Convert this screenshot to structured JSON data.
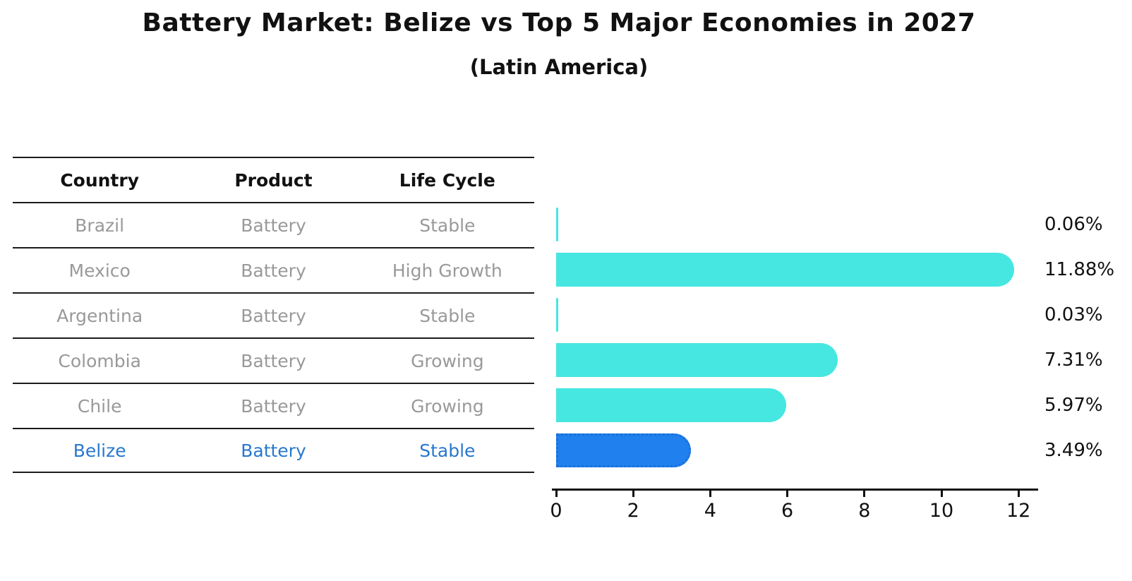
{
  "title": "Battery Market: Belize vs Top 5 Major Economies in 2027",
  "subtitle": "(Latin America)",
  "table": {
    "headers": [
      "Country",
      "Product",
      "Life Cycle"
    ],
    "rows": [
      {
        "country": "Brazil",
        "product": "Battery",
        "life_cycle": "Stable",
        "highlighted": false
      },
      {
        "country": "Mexico",
        "product": "Battery",
        "life_cycle": "High Growth",
        "highlighted": false
      },
      {
        "country": "Argentina",
        "product": "Battery",
        "life_cycle": "Stable",
        "highlighted": false
      },
      {
        "country": "Colombia",
        "product": "Battery",
        "life_cycle": "Growing",
        "highlighted": false
      },
      {
        "country": "Chile",
        "product": "Battery",
        "life_cycle": "Growing",
        "highlighted": false
      },
      {
        "country": "Belize",
        "product": "Battery",
        "life_cycle": "Stable",
        "highlighted": true
      }
    ]
  },
  "chart_data": {
    "type": "bar",
    "orientation": "horizontal",
    "title": "Battery Market: Belize vs Top 5 Major Economies in 2027",
    "subtitle": "(Latin America)",
    "categories": [
      "Brazil",
      "Mexico",
      "Argentina",
      "Colombia",
      "Chile",
      "Belize"
    ],
    "values": [
      0.06,
      11.88,
      0.03,
      7.31,
      5.97,
      3.49
    ],
    "value_labels": [
      "0.06%",
      "11.88%",
      "0.03%",
      "7.31%",
      "5.97%",
      "3.49%"
    ],
    "x_ticks": [
      0,
      2,
      4,
      6,
      8,
      10,
      12
    ],
    "xlim": [
      0,
      12.55
    ],
    "grid": false,
    "legend": "none",
    "highlighted_index": 5
  },
  "colors": {
    "bar": "#46E6E1",
    "highlight_bar": "#2080EE",
    "highlight_bar_border": "#1A6FD9",
    "highlight_text": "#2878CD",
    "table_text": "#999999",
    "header_text": "#111111",
    "axis": "#111111"
  }
}
